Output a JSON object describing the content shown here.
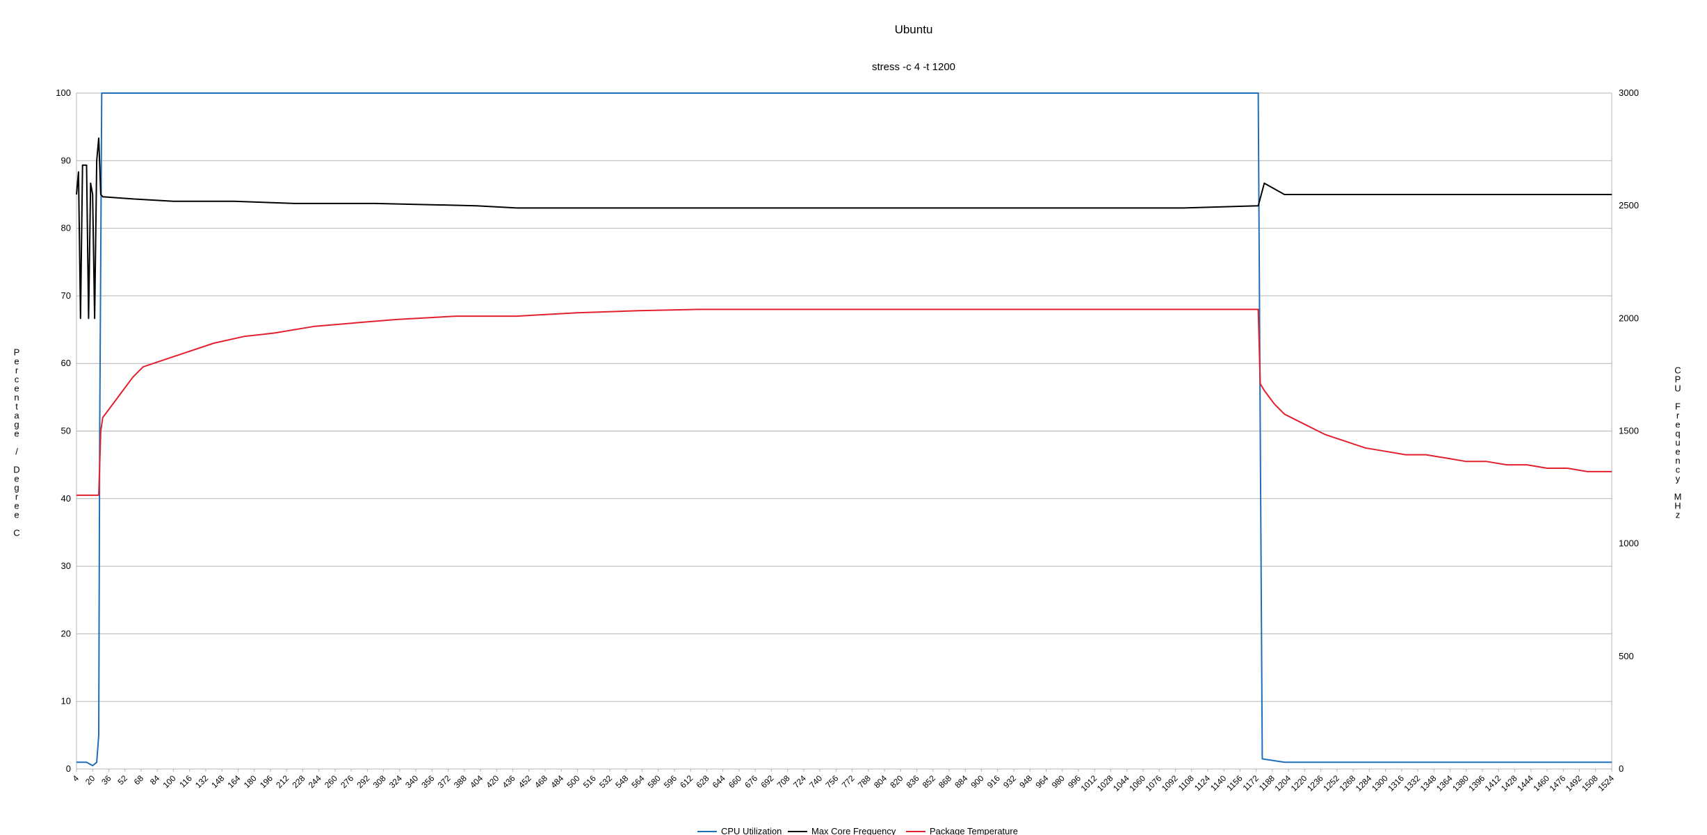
{
  "chart_data": {
    "type": "line",
    "title": "Ubuntu",
    "subtitle": "stress -c 4 -t 1200",
    "ylabel_left": "Percentage / Degree C",
    "ylabel_right": "CPU Frequency MHz",
    "xlabel": "",
    "x_range": [
      4,
      1524
    ],
    "x_tick_start": 4,
    "x_tick_step": 16,
    "ylim_left": [
      0,
      100
    ],
    "ylim_right": [
      0,
      3000
    ],
    "yticks_left": [
      0,
      10,
      20,
      30,
      40,
      50,
      60,
      70,
      80,
      90,
      100
    ],
    "yticks_right": [
      0,
      500,
      1000,
      1500,
      2000,
      2500,
      3000
    ],
    "grid": true,
    "legend_position": "bottom",
    "series": [
      {
        "name": "CPU Utilization",
        "axis": "left",
        "color": "#1f6fb8",
        "points": [
          [
            4,
            1
          ],
          [
            14,
            1
          ],
          [
            20,
            0.5
          ],
          [
            24,
            1
          ],
          [
            26,
            5
          ],
          [
            27,
            50
          ],
          [
            29,
            100
          ],
          [
            1174,
            100
          ],
          [
            1176,
            50
          ],
          [
            1178,
            1.5
          ],
          [
            1200,
            1
          ],
          [
            1260,
            1
          ],
          [
            1320,
            1
          ],
          [
            1380,
            1
          ],
          [
            1440,
            1
          ],
          [
            1500,
            1
          ],
          [
            1524,
            1
          ]
        ]
      },
      {
        "name": "Max Core Frequency",
        "axis": "right",
        "color": "#000000",
        "points": [
          [
            4,
            2550
          ],
          [
            6,
            2650
          ],
          [
            8,
            2000
          ],
          [
            10,
            2680
          ],
          [
            14,
            2680
          ],
          [
            16,
            2000
          ],
          [
            18,
            2600
          ],
          [
            20,
            2550
          ],
          [
            22,
            2000
          ],
          [
            24,
            2700
          ],
          [
            26,
            2800
          ],
          [
            28,
            2550
          ],
          [
            30,
            2540
          ],
          [
            60,
            2530
          ],
          [
            100,
            2520
          ],
          [
            160,
            2520
          ],
          [
            220,
            2510
          ],
          [
            300,
            2510
          ],
          [
            400,
            2500
          ],
          [
            440,
            2490
          ],
          [
            460,
            2490
          ],
          [
            520,
            2490
          ],
          [
            600,
            2490
          ],
          [
            700,
            2490
          ],
          [
            800,
            2490
          ],
          [
            900,
            2490
          ],
          [
            1000,
            2490
          ],
          [
            1100,
            2490
          ],
          [
            1174,
            2500
          ],
          [
            1180,
            2600
          ],
          [
            1200,
            2550
          ],
          [
            1250,
            2550
          ],
          [
            1300,
            2550
          ],
          [
            1350,
            2550
          ],
          [
            1400,
            2550
          ],
          [
            1450,
            2550
          ],
          [
            1500,
            2550
          ],
          [
            1524,
            2550
          ]
        ]
      },
      {
        "name": "Package Temperature",
        "axis": "left",
        "color": "#e2202d",
        "points": [
          [
            4,
            40.5
          ],
          [
            26,
            40.5
          ],
          [
            28,
            50
          ],
          [
            30,
            52
          ],
          [
            40,
            54
          ],
          [
            50,
            56
          ],
          [
            60,
            58
          ],
          [
            70,
            59.5
          ],
          [
            90,
            60.5
          ],
          [
            110,
            61.5
          ],
          [
            140,
            63
          ],
          [
            170,
            64
          ],
          [
            200,
            64.5
          ],
          [
            240,
            65.5
          ],
          [
            280,
            66
          ],
          [
            320,
            66.5
          ],
          [
            380,
            67
          ],
          [
            440,
            67
          ],
          [
            500,
            67.5
          ],
          [
            560,
            67.8
          ],
          [
            620,
            68
          ],
          [
            700,
            68
          ],
          [
            800,
            68
          ],
          [
            900,
            68
          ],
          [
            1000,
            68
          ],
          [
            1100,
            68
          ],
          [
            1170,
            68
          ],
          [
            1174,
            68
          ],
          [
            1176,
            57
          ],
          [
            1180,
            56
          ],
          [
            1190,
            54
          ],
          [
            1200,
            52.5
          ],
          [
            1220,
            51
          ],
          [
            1240,
            49.5
          ],
          [
            1260,
            48.5
          ],
          [
            1280,
            47.5
          ],
          [
            1300,
            47
          ],
          [
            1320,
            46.5
          ],
          [
            1340,
            46.5
          ],
          [
            1360,
            46
          ],
          [
            1380,
            45.5
          ],
          [
            1400,
            45.5
          ],
          [
            1420,
            45
          ],
          [
            1440,
            45
          ],
          [
            1460,
            44.5
          ],
          [
            1480,
            44.5
          ],
          [
            1500,
            44
          ],
          [
            1524,
            44
          ]
        ]
      }
    ]
  }
}
